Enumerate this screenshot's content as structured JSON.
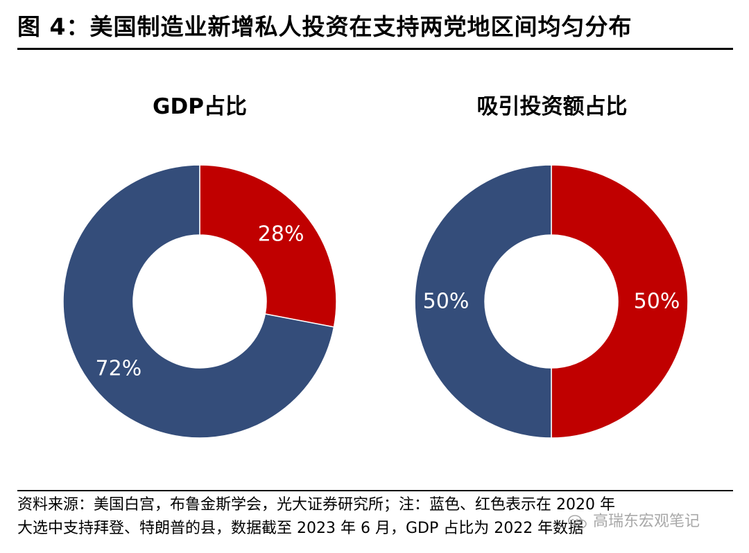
{
  "figure": {
    "title": "图 4：美国制造业新增私人投资在支持两党地区间均匀分布"
  },
  "colors": {
    "blue": "#344D7A",
    "red": "#C00000"
  },
  "chart_data": [
    {
      "type": "pie",
      "title": "GDP占比",
      "slices": [
        {
          "value": 28,
          "label": "28%",
          "color": "#C00000"
        },
        {
          "value": 72,
          "label": "72%",
          "color": "#344D7A"
        }
      ]
    },
    {
      "type": "pie",
      "title": "吸引投资额占比",
      "slices": [
        {
          "value": 50,
          "label": "50%",
          "color": "#C00000"
        },
        {
          "value": 50,
          "label": "50%",
          "color": "#344D7A"
        }
      ]
    }
  ],
  "source": {
    "line1": "资料来源：美国白宫，布鲁金斯学会，光大证券研究所；注：蓝色、红色表示在 2020 年",
    "line2": "大选中支持拜登、特朗普的县，数据截至 2023 年 6 月，GDP 占比为 2022 年数据"
  },
  "watermark": {
    "text": "高瑞东宏观笔记",
    "icon": "wechat-icon"
  }
}
